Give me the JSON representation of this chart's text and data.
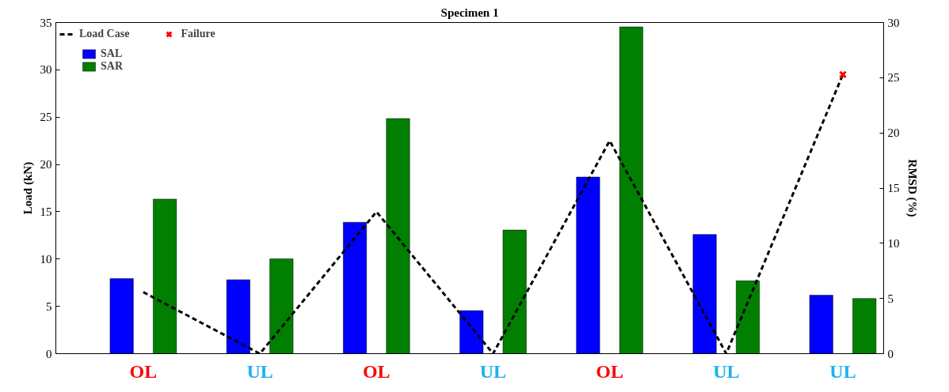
{
  "chart_data": {
    "type": "bar",
    "title": "Specimen 1",
    "ylabel": "Load (kN)",
    "y2label": "RMSD (%)",
    "categories": [
      "OL",
      "UL",
      "OL",
      "UL",
      "OL",
      "UL",
      "UL"
    ],
    "ylim": [
      0,
      35
    ],
    "yticks": [
      0,
      5,
      10,
      15,
      20,
      25,
      30,
      35
    ],
    "y2lim": [
      0,
      30
    ],
    "y2ticks": [
      0,
      5,
      10,
      15,
      20,
      25,
      30
    ],
    "grid": false,
    "legend": "top left",
    "series": [
      {
        "name": "Load Case",
        "type": "line",
        "line_style": "dashed",
        "color": "#000000",
        "values": [
          6.5,
          0,
          15,
          0,
          22.5,
          0,
          29.5
        ]
      },
      {
        "name": "Failure",
        "type": "scatter",
        "marker": "cross",
        "color": "#ff0000",
        "values": [
          null,
          null,
          null,
          null,
          null,
          null,
          29.5
        ]
      },
      {
        "name": "SAL",
        "axis": "y2",
        "color": "#0000ff",
        "values": [
          6.8,
          6.7,
          11.9,
          3.9,
          16.0,
          10.8,
          5.3
        ]
      },
      {
        "name": "SAR",
        "axis": "y2",
        "color": "#007f00",
        "values": [
          14.0,
          8.6,
          21.3,
          11.2,
          29.6,
          6.6,
          5.0
        ]
      }
    ]
  }
}
